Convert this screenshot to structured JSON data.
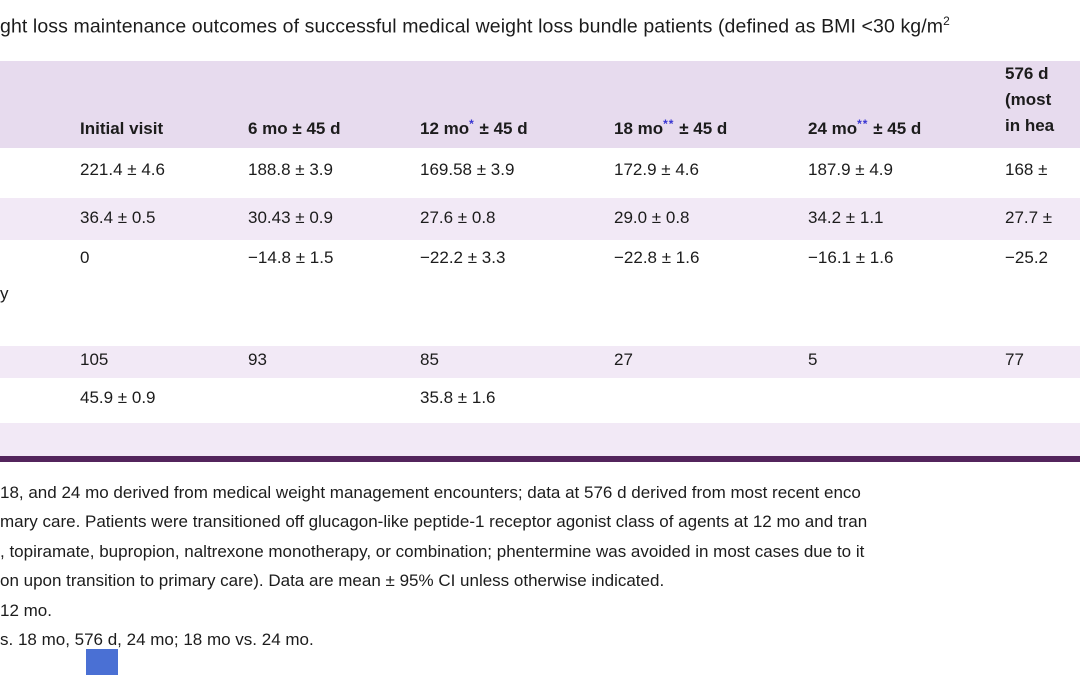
{
  "title": {
    "text": "ght loss maintenance outcomes of successful medical weight loss bundle patients (defined as BMI <30 kg/m",
    "sup": "2"
  },
  "table": {
    "header": {
      "c0": "",
      "c1": "Initial visit",
      "c2": "6 mo ± 45 d",
      "c3_pre": "12 mo",
      "c3_ast": "*",
      "c3_post": " ± 45 d",
      "c4_pre": "18 mo",
      "c4_ast": "**",
      "c4_post": " ± 45 d",
      "c5_pre": "24 mo",
      "c5_ast": "**",
      "c5_post": " ± 45 d",
      "c6_l1": "576 d",
      "c6_l2": "(most",
      "c6_l3": "in hea"
    },
    "rows": [
      {
        "label": "",
        "c": [
          "221.4 ± 4.6",
          "188.8 ± 3.9",
          "169.58 ± 3.9",
          "172.9 ± 4.6",
          "187.9 ± 4.9",
          "168 ±"
        ]
      },
      {
        "label": "",
        "c": [
          "36.4 ± 0.5",
          "30.43 ± 0.9",
          "27.6 ± 0.8",
          "29.0 ± 0.8",
          "34.2 ± 1.1",
          "27.7 ±"
        ]
      },
      {
        "label": "y",
        "c": [
          "0",
          "−14.8 ± 1.5",
          "−22.2 ± 3.3",
          "−22.8 ± 1.6",
          "−16.1 ± 1.6",
          "−25.2"
        ]
      },
      {
        "label": "",
        "c": [
          "105",
          "93",
          "85",
          "27",
          "5",
          "77"
        ]
      },
      {
        "label": "",
        "c": [
          "45.9 ± 0.9",
          "",
          "35.8 ± 1.6",
          "",
          "",
          ""
        ]
      }
    ]
  },
  "footnotes": [
    "18, and 24 mo derived from medical weight management encounters; data at 576 d derived from most recent enco",
    "mary care. Patients were transitioned off glucagon-like peptide-1 receptor agonist class of agents at 12 mo and tran",
    ", topiramate, bupropion, naltrexone monotherapy, or combination; phentermine was avoided in most cases due to it",
    "on upon transition to primary care). Data are mean ± 95% CI unless otherwise indicated.",
    "12 mo.",
    "s. 18 mo, 576 d, 24 mo; 18 mo vs. 24 mo."
  ],
  "colors": {
    "header_bg": "#E7DBEE",
    "row_bg": "#F2E9F6",
    "rule": "#53245C",
    "ast": "#3935D2",
    "square": "#4A70D4",
    "text": "#1C1C1C"
  }
}
